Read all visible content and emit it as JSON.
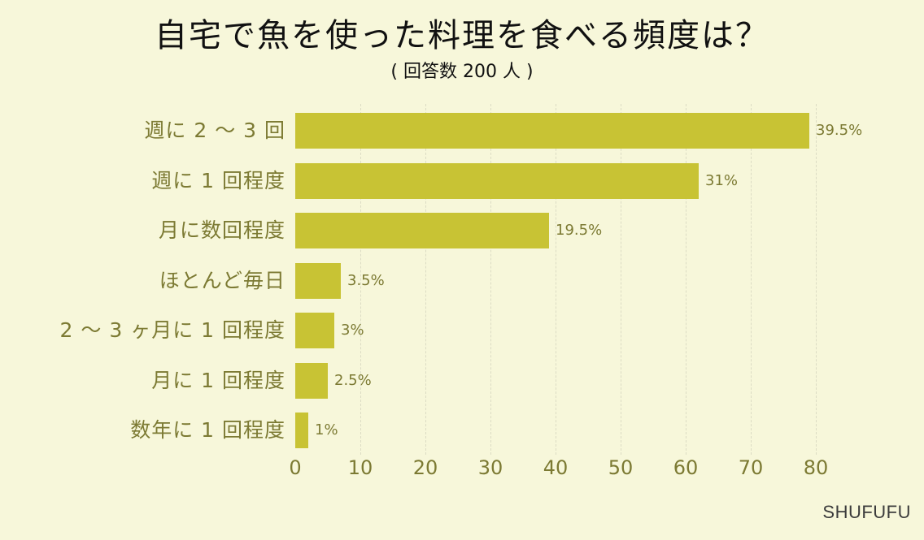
{
  "header": {
    "title": "自宅で魚を使った料理を食べる頻度は？",
    "subtitle": "( 回答数 200 人 )"
  },
  "footer": {
    "brand": "SHUFUFU"
  },
  "colors": {
    "background": "#f7f7da",
    "bar": "#c8c334",
    "label": "#7c7a33",
    "grid": "#dcdcc4"
  },
  "chart_data": {
    "type": "bar",
    "orientation": "horizontal",
    "title": "自宅で魚を使った料理を食べる頻度は？",
    "subtitle": "( 回答数 200 人 )",
    "xlabel": "",
    "ylabel": "",
    "categories": [
      "週に２～３回",
      "週に１回程度",
      "月に数回程度",
      "ほとんど毎日",
      "２～３ヶ月に１回程度",
      "月に１回程度",
      "数年に１回程度"
    ],
    "category_labels": [
      "週に 2 ～ 3 回",
      "週に 1 回程度",
      "月に数回程度",
      "ほとんど毎日",
      "2 ～ 3 ヶ月に 1 回程度",
      "月に 1 回程度",
      "数年に 1 回程度"
    ],
    "values": [
      79,
      62,
      39,
      7,
      6,
      5,
      2
    ],
    "value_labels": [
      "39.5%",
      "31%",
      "19.5%",
      "3.5%",
      "3%",
      "2.5%",
      "1%"
    ],
    "percentages": [
      39.5,
      31,
      19.5,
      3.5,
      3,
      2.5,
      1
    ],
    "xlim": [
      0,
      80
    ],
    "xticks": [
      "0",
      "10",
      "20",
      "30",
      "40",
      "50",
      "60",
      "70",
      "80"
    ],
    "grid": "vertical dashed",
    "legend": "none"
  }
}
